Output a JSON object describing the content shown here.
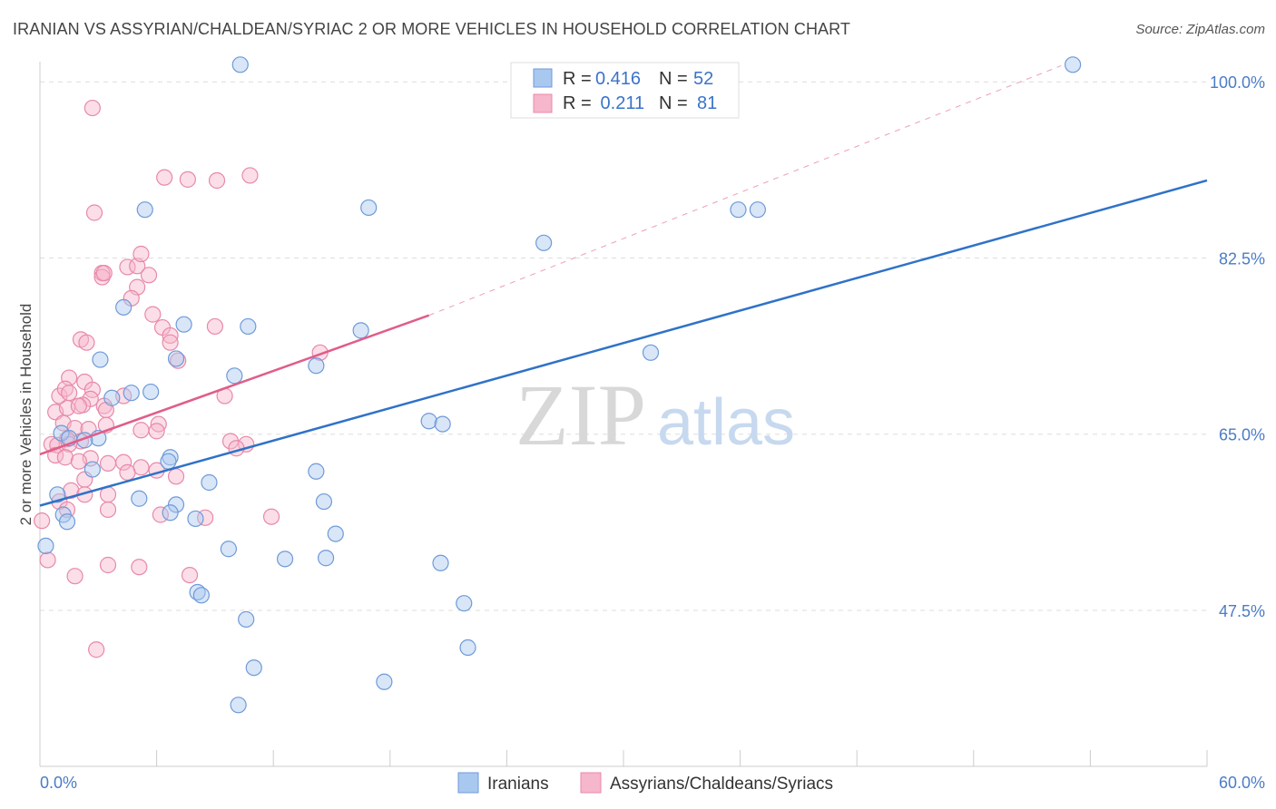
{
  "title": "IRANIAN VS ASSYRIAN/CHALDEAN/SYRIAC 2 OR MORE VEHICLES IN HOUSEHOLD CORRELATION CHART",
  "source": "Source: ZipAtlas.com",
  "watermark": {
    "zip": "ZIP",
    "atlas": "atlas"
  },
  "colors": {
    "blue_fill": "#a9c8ef",
    "blue_stroke": "#6f9ad8",
    "blue_line": "#2f72c8",
    "pink_fill": "#f6b6cb",
    "pink_stroke": "#e889a8",
    "pink_line": "#e05d8a",
    "axis_label": "#4a7cc7",
    "grid": "#dddddd"
  },
  "legend": {
    "rows": [
      {
        "r_label": "R =",
        "r_value": "0.416",
        "n_label": "N =",
        "n_value": "52"
      },
      {
        "r_label": "R =",
        "r_value": " 0.211",
        "n_label": "N =",
        "n_value": "81"
      }
    ]
  },
  "bottom_legend": {
    "series1": "Iranians",
    "series2": "Assyrians/Chaldeans/Syriacs"
  },
  "chart_data": {
    "type": "scatter",
    "ylabel": "2 or more Vehicles in Household",
    "xlim": [
      0,
      60
    ],
    "ylim": [
      32,
      102
    ],
    "x_tick_labels": {
      "min": "0.0%",
      "max": "60.0%"
    },
    "y_ticks": [
      {
        "value": 100,
        "label": "100.0%"
      },
      {
        "value": 82.5,
        "label": "82.5%"
      },
      {
        "value": 65,
        "label": "65.0%"
      },
      {
        "value": 47.5,
        "label": "47.5%"
      }
    ],
    "grid": true,
    "legend_position": "top-center",
    "series": [
      {
        "name": "Iranians",
        "color": "#a9c8ef",
        "points": [
          [
            10.3,
            101.7
          ],
          [
            53.1,
            101.7
          ],
          [
            5.4,
            87.3
          ],
          [
            16.9,
            87.5
          ],
          [
            35.9,
            87.3
          ],
          [
            36.9,
            87.3
          ],
          [
            25.9,
            84.0
          ],
          [
            4.3,
            77.6
          ],
          [
            7.4,
            75.9
          ],
          [
            10.7,
            75.7
          ],
          [
            16.5,
            75.3
          ],
          [
            31.4,
            73.1
          ],
          [
            3.1,
            72.4
          ],
          [
            7.0,
            72.5
          ],
          [
            14.2,
            71.8
          ],
          [
            10.0,
            70.8
          ],
          [
            4.7,
            69.1
          ],
          [
            3.7,
            68.6
          ],
          [
            5.7,
            69.2
          ],
          [
            1.1,
            65.1
          ],
          [
            1.5,
            64.6
          ],
          [
            3.0,
            64.6
          ],
          [
            20.0,
            66.3
          ],
          [
            20.7,
            66.0
          ],
          [
            2.3,
            64.4
          ],
          [
            6.7,
            62.7
          ],
          [
            6.6,
            62.3
          ],
          [
            2.7,
            61.5
          ],
          [
            8.7,
            60.2
          ],
          [
            14.2,
            61.3
          ],
          [
            5.1,
            58.6
          ],
          [
            0.9,
            59.0
          ],
          [
            1.2,
            57.0
          ],
          [
            7.0,
            58.0
          ],
          [
            6.7,
            57.2
          ],
          [
            1.4,
            56.3
          ],
          [
            8.0,
            56.6
          ],
          [
            14.6,
            58.3
          ],
          [
            15.2,
            55.1
          ],
          [
            9.7,
            53.6
          ],
          [
            12.6,
            52.6
          ],
          [
            14.7,
            52.7
          ],
          [
            20.6,
            52.2
          ],
          [
            0.3,
            53.9
          ],
          [
            8.1,
            49.3
          ],
          [
            8.3,
            49.0
          ],
          [
            10.6,
            46.6
          ],
          [
            21.8,
            48.2
          ],
          [
            11.0,
            41.8
          ],
          [
            22.0,
            43.8
          ],
          [
            17.7,
            40.4
          ],
          [
            10.2,
            38.1
          ]
        ]
      },
      {
        "name": "Assyrians/Chaldeans/Syriacs",
        "color": "#f6b6cb",
        "points": [
          [
            2.7,
            97.4
          ],
          [
            6.4,
            90.5
          ],
          [
            7.6,
            90.3
          ],
          [
            9.1,
            90.2
          ],
          [
            10.8,
            90.7
          ],
          [
            2.8,
            87.0
          ],
          [
            3.2,
            81.0
          ],
          [
            3.2,
            80.6
          ],
          [
            3.3,
            81.0
          ],
          [
            4.5,
            81.6
          ],
          [
            5.0,
            81.7
          ],
          [
            5.2,
            82.9
          ],
          [
            5.0,
            79.6
          ],
          [
            5.6,
            80.8
          ],
          [
            4.7,
            78.5
          ],
          [
            5.8,
            76.9
          ],
          [
            6.3,
            75.6
          ],
          [
            6.7,
            74.8
          ],
          [
            9.0,
            75.7
          ],
          [
            2.1,
            74.4
          ],
          [
            2.4,
            74.1
          ],
          [
            6.7,
            74.1
          ],
          [
            7.1,
            72.3
          ],
          [
            14.4,
            73.1
          ],
          [
            1.5,
            70.6
          ],
          [
            2.3,
            70.2
          ],
          [
            2.7,
            69.4
          ],
          [
            1.0,
            68.8
          ],
          [
            1.3,
            69.5
          ],
          [
            1.5,
            69.1
          ],
          [
            2.6,
            68.5
          ],
          [
            2.2,
            67.9
          ],
          [
            3.3,
            67.8
          ],
          [
            0.8,
            67.2
          ],
          [
            1.4,
            67.6
          ],
          [
            2.0,
            67.8
          ],
          [
            3.4,
            67.4
          ],
          [
            4.3,
            68.8
          ],
          [
            9.5,
            68.8
          ],
          [
            1.2,
            66.1
          ],
          [
            1.8,
            65.6
          ],
          [
            2.5,
            65.5
          ],
          [
            3.4,
            65.9
          ],
          [
            1.4,
            64.5
          ],
          [
            2.1,
            64.3
          ],
          [
            0.6,
            64.0
          ],
          [
            0.9,
            63.9
          ],
          [
            1.5,
            64.0
          ],
          [
            6.1,
            66.0
          ],
          [
            5.2,
            65.4
          ],
          [
            6.0,
            65.3
          ],
          [
            9.8,
            64.3
          ],
          [
            10.6,
            64.0
          ],
          [
            10.1,
            63.6
          ],
          [
            2.6,
            62.6
          ],
          [
            0.8,
            62.9
          ],
          [
            1.3,
            62.7
          ],
          [
            2.0,
            62.3
          ],
          [
            3.5,
            62.1
          ],
          [
            4.3,
            62.2
          ],
          [
            5.2,
            61.7
          ],
          [
            6.0,
            61.4
          ],
          [
            4.5,
            61.2
          ],
          [
            7.0,
            60.8
          ],
          [
            2.3,
            60.5
          ],
          [
            1.6,
            59.4
          ],
          [
            2.3,
            59.0
          ],
          [
            3.5,
            59.0
          ],
          [
            1.0,
            58.3
          ],
          [
            0.1,
            56.4
          ],
          [
            1.4,
            57.5
          ],
          [
            3.5,
            57.5
          ],
          [
            6.2,
            57.0
          ],
          [
            8.5,
            56.7
          ],
          [
            11.9,
            56.8
          ],
          [
            0.4,
            52.5
          ],
          [
            3.5,
            52.0
          ],
          [
            5.1,
            51.8
          ],
          [
            7.7,
            51.0
          ],
          [
            1.8,
            50.9
          ],
          [
            2.9,
            43.6
          ]
        ]
      }
    ],
    "trend_lines": [
      {
        "series": "Iranians",
        "x": [
          0,
          60
        ],
        "y": [
          57.9,
          90.2
        ]
      },
      {
        "series": "Assyrians/Chaldeans/Syriacs",
        "x": [
          0,
          20
        ],
        "y": [
          63.0,
          76.8
        ],
        "dashed_extension_x": [
          20,
          52.5
        ],
        "dashed_extension_y": [
          76.8,
          101.6
        ]
      }
    ]
  }
}
